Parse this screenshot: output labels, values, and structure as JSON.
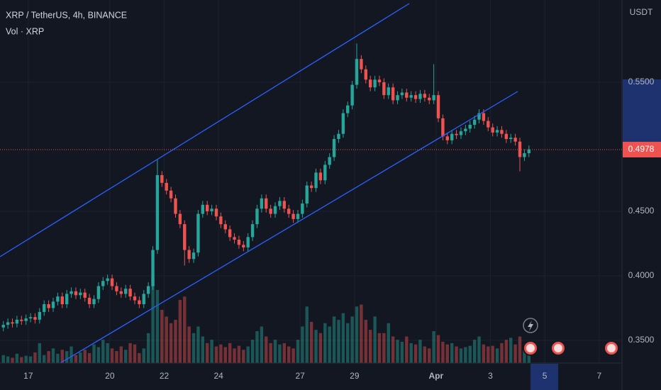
{
  "chart_data": {
    "type": "candlestick",
    "title": "XRP / TetherUS, 4h, BINANCE",
    "subtitle": "Vol · XRP",
    "y_axis_label": "USDT",
    "last_price": 0.4978,
    "colors": {
      "up": "#26a69a",
      "down": "#ef5350"
    },
    "grid": true,
    "xlim": [
      15.96,
      38.84
    ],
    "xticks": [
      17,
      20,
      22,
      24,
      27,
      29,
      {
        "value": 32,
        "label": "Apr"
      },
      {
        "value": 34,
        "label": "3"
      },
      {
        "value": 36,
        "label": "5"
      },
      {
        "value": 38,
        "label": "7"
      }
    ],
    "ylim": [
      0.3324,
      0.6137
    ],
    "yticks": [
      {
        "value": 0.35,
        "label": "0.3500"
      },
      {
        "value": 0.4,
        "label": "0.4000"
      },
      {
        "value": 0.45,
        "label": "0.4500"
      },
      {
        "value": 0.55,
        "label": "0.5500"
      }
    ],
    "open": [
      0.36,
      0.362,
      0.364,
      0.363,
      0.366,
      0.365,
      0.367,
      0.368,
      0.366,
      0.372,
      0.378,
      0.375,
      0.38,
      0.384,
      0.378,
      0.386,
      0.388,
      0.385,
      0.387,
      0.383,
      0.378,
      0.382,
      0.392,
      0.396,
      0.398,
      0.392,
      0.388,
      0.386,
      0.39,
      0.384,
      0.381,
      0.378,
      0.386,
      0.392,
      0.42,
      0.478,
      0.472,
      0.466,
      0.46,
      0.448,
      0.44,
      0.42,
      0.413,
      0.418,
      0.448,
      0.455,
      0.45,
      0.452,
      0.446,
      0.44,
      0.436,
      0.43,
      0.428,
      0.424,
      0.422,
      0.43,
      0.44,
      0.452,
      0.46,
      0.452,
      0.448,
      0.454,
      0.458,
      0.452,
      0.448,
      0.444,
      0.448,
      0.456,
      0.47,
      0.468,
      0.48,
      0.474,
      0.486,
      0.492,
      0.506,
      0.51,
      0.526,
      0.532,
      0.548,
      0.568,
      0.56,
      0.552,
      0.546,
      0.552,
      0.55,
      0.54,
      0.546,
      0.536,
      0.54,
      0.542,
      0.538,
      0.54,
      0.537,
      0.541,
      0.538,
      0.536,
      0.54,
      0.522,
      0.508,
      0.505,
      0.51,
      0.509,
      0.512,
      0.514,
      0.517,
      0.521,
      0.526,
      0.52,
      0.515,
      0.511,
      0.513,
      0.51,
      0.506,
      0.507,
      0.504,
      0.492,
      0.495
    ],
    "high": [
      0.365,
      0.367,
      0.367,
      0.369,
      0.369,
      0.37,
      0.371,
      0.371,
      0.375,
      0.381,
      0.381,
      0.383,
      0.387,
      0.387,
      0.389,
      0.391,
      0.391,
      0.39,
      0.39,
      0.386,
      0.385,
      0.395,
      0.399,
      0.401,
      0.401,
      0.395,
      0.391,
      0.393,
      0.393,
      0.387,
      0.384,
      0.389,
      0.395,
      0.423,
      0.49,
      0.481,
      0.475,
      0.469,
      0.463,
      0.451,
      0.443,
      0.423,
      0.421,
      0.451,
      0.458,
      0.458,
      0.455,
      0.455,
      0.449,
      0.443,
      0.439,
      0.433,
      0.431,
      0.427,
      0.433,
      0.443,
      0.455,
      0.463,
      0.463,
      0.455,
      0.457,
      0.461,
      0.461,
      0.455,
      0.451,
      0.451,
      0.459,
      0.473,
      0.473,
      0.483,
      0.483,
      0.489,
      0.495,
      0.509,
      0.513,
      0.529,
      0.535,
      0.551,
      0.58,
      0.571,
      0.563,
      0.555,
      0.555,
      0.555,
      0.553,
      0.549,
      0.549,
      0.543,
      0.545,
      0.545,
      0.543,
      0.543,
      0.544,
      0.544,
      0.541,
      0.564,
      0.543,
      0.525,
      0.511,
      0.513,
      0.513,
      0.515,
      0.517,
      0.52,
      0.524,
      0.529,
      0.529,
      0.523,
      0.518,
      0.516,
      0.516,
      0.513,
      0.51,
      0.51,
      0.507,
      0.498,
      0.501
    ],
    "low": [
      0.357,
      0.359,
      0.36,
      0.36,
      0.362,
      0.362,
      0.364,
      0.363,
      0.363,
      0.369,
      0.372,
      0.372,
      0.377,
      0.375,
      0.375,
      0.383,
      0.382,
      0.382,
      0.38,
      0.375,
      0.375,
      0.379,
      0.389,
      0.393,
      0.389,
      0.385,
      0.383,
      0.383,
      0.381,
      0.378,
      0.375,
      0.375,
      0.383,
      0.389,
      0.417,
      0.469,
      0.463,
      0.457,
      0.445,
      0.437,
      0.408,
      0.41,
      0.41,
      0.415,
      0.445,
      0.447,
      0.447,
      0.443,
      0.437,
      0.433,
      0.427,
      0.425,
      0.421,
      0.419,
      0.419,
      0.427,
      0.437,
      0.449,
      0.449,
      0.445,
      0.445,
      0.451,
      0.449,
      0.445,
      0.441,
      0.441,
      0.445,
      0.453,
      0.465,
      0.465,
      0.471,
      0.471,
      0.483,
      0.489,
      0.503,
      0.507,
      0.523,
      0.529,
      0.545,
      0.557,
      0.549,
      0.543,
      0.543,
      0.547,
      0.537,
      0.537,
      0.533,
      0.533,
      0.537,
      0.535,
      0.535,
      0.534,
      0.534,
      0.535,
      0.533,
      0.533,
      0.519,
      0.505,
      0.502,
      0.502,
      0.506,
      0.506,
      0.509,
      0.511,
      0.514,
      0.518,
      0.517,
      0.512,
      0.508,
      0.508,
      0.507,
      0.503,
      0.503,
      0.501,
      0.481,
      0.489,
      0.492
    ],
    "close": [
      0.362,
      0.364,
      0.363,
      0.366,
      0.365,
      0.367,
      0.368,
      0.366,
      0.372,
      0.378,
      0.375,
      0.38,
      0.384,
      0.378,
      0.386,
      0.388,
      0.385,
      0.387,
      0.383,
      0.378,
      0.382,
      0.392,
      0.396,
      0.398,
      0.392,
      0.388,
      0.386,
      0.39,
      0.384,
      0.381,
      0.378,
      0.386,
      0.392,
      0.42,
      0.478,
      0.472,
      0.466,
      0.46,
      0.448,
      0.44,
      0.42,
      0.413,
      0.418,
      0.448,
      0.455,
      0.45,
      0.452,
      0.446,
      0.44,
      0.436,
      0.43,
      0.428,
      0.424,
      0.422,
      0.43,
      0.44,
      0.452,
      0.46,
      0.452,
      0.448,
      0.454,
      0.458,
      0.452,
      0.448,
      0.444,
      0.448,
      0.456,
      0.47,
      0.468,
      0.48,
      0.474,
      0.486,
      0.492,
      0.506,
      0.51,
      0.526,
      0.532,
      0.548,
      0.568,
      0.56,
      0.552,
      0.546,
      0.552,
      0.55,
      0.54,
      0.546,
      0.536,
      0.54,
      0.542,
      0.538,
      0.54,
      0.537,
      0.541,
      0.538,
      0.536,
      0.54,
      0.522,
      0.508,
      0.505,
      0.51,
      0.509,
      0.512,
      0.514,
      0.517,
      0.521,
      0.526,
      0.52,
      0.515,
      0.511,
      0.513,
      0.51,
      0.506,
      0.507,
      0.504,
      0.492,
      0.495,
      0.498
    ],
    "volume": [
      12,
      10,
      8,
      14,
      9,
      11,
      10,
      16,
      30,
      12,
      18,
      22,
      14,
      20,
      18,
      25,
      12,
      16,
      20,
      15,
      28,
      24,
      35,
      30,
      22,
      18,
      25,
      20,
      30,
      28,
      15,
      22,
      45,
      128,
      110,
      80,
      70,
      60,
      65,
      95,
      100,
      55,
      45,
      55,
      40,
      30,
      35,
      25,
      28,
      24,
      30,
      22,
      26,
      20,
      25,
      35,
      48,
      55,
      40,
      30,
      35,
      28,
      30,
      25,
      22,
      35,
      55,
      85,
      62,
      50,
      45,
      60,
      55,
      70,
      65,
      75,
      60,
      70,
      85,
      88,
      65,
      50,
      70,
      45,
      45,
      60,
      40,
      35,
      32,
      40,
      30,
      28,
      35,
      25,
      22,
      48,
      42,
      32,
      28,
      30,
      25,
      22,
      24,
      26,
      35,
      40,
      28,
      25,
      26,
      22,
      30,
      35,
      38,
      28,
      40,
      20,
      15
    ]
  }
}
